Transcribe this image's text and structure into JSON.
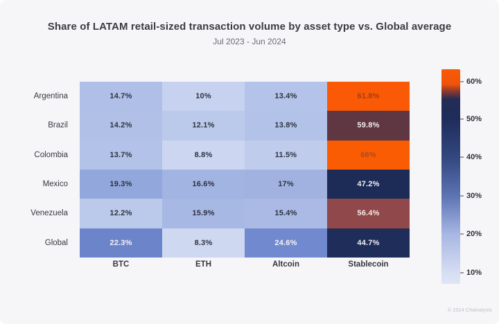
{
  "header": {
    "title": "Share of LATAM retail-sized transaction volume by asset type vs. Global average",
    "subtitle": "Jul 2023 - Jun 2024"
  },
  "footer": {
    "attribution": "© 2024 Chainalysis"
  },
  "colors": {
    "card_background": "#f6f6f8",
    "accent_orange": "#fa5a06",
    "accent_navy": "#1d2b57",
    "light_cell_text": "#2e3340",
    "dark_cell_text": "#f4f3f4"
  },
  "chart_data": {
    "type": "heatmap",
    "title": "Share of LATAM retail-sized transaction volume by asset type vs. Global average",
    "subtitle": "Jul 2023 - Jun 2024",
    "rows": [
      "Argentina",
      "Brazil",
      "Colombia",
      "Mexico",
      "Venezuela",
      "Global"
    ],
    "columns": [
      "BTC",
      "ETH",
      "Altcoin",
      "Stablecoin"
    ],
    "values": [
      [
        14.7,
        10,
        13.4,
        61.8
      ],
      [
        14.2,
        12.1,
        13.8,
        59.8
      ],
      [
        13.7,
        8.8,
        11.5,
        66
      ],
      [
        19.3,
        16.6,
        17,
        47.2
      ],
      [
        12.2,
        15.9,
        15.4,
        56.4
      ],
      [
        22.3,
        8.3,
        24.6,
        44.7
      ]
    ],
    "labels": [
      [
        "14.7%",
        "10%",
        "13.4%",
        "61.8%"
      ],
      [
        "14.2%",
        "12.1%",
        "13.8%",
        "59.8%"
      ],
      [
        "13.7%",
        "8.8%",
        "11.5%",
        "66%"
      ],
      [
        "19.3%",
        "16.6%",
        "17%",
        "47.2%"
      ],
      [
        "12.2%",
        "15.9%",
        "15.4%",
        "56.4%"
      ],
      [
        "22.3%",
        "8.3%",
        "24.6%",
        "44.7%"
      ]
    ],
    "cell_colors": [
      [
        "#afbfe7",
        "#c7d2f0",
        "#b4c3e9",
        "#fa5a06"
      ],
      [
        "#b1c0e7",
        "#bbc9eb",
        "#b3c2e8",
        "#5e3743"
      ],
      [
        "#b3c2e8",
        "#ccd6f1",
        "#bfccec",
        "#fa5c04"
      ],
      [
        "#92a7db",
        "#a2b4e2",
        "#a1b2e1",
        "#1d2b57"
      ],
      [
        "#bbc9ea",
        "#a7b8e4",
        "#aabae5",
        "#91484a"
      ],
      [
        "#6c84c9",
        "#ced8f1",
        "#7189ce",
        "#1f2d5a"
      ]
    ],
    "cell_text_colors": [
      [
        "#2e3340",
        "#2e3340",
        "#2e3340",
        "#a63e16"
      ],
      [
        "#2e3340",
        "#2e3340",
        "#2e3340",
        "#f3ecea"
      ],
      [
        "#2e3340",
        "#2e3340",
        "#2e3340",
        "#b0491a"
      ],
      [
        "#2e3340",
        "#2e3340",
        "#2e3340",
        "#f2f1f4"
      ],
      [
        "#2e3340",
        "#2e3340",
        "#2e3340",
        "#f3e9e7"
      ],
      [
        "#f4f4f6",
        "#2e3340",
        "#f4f4f6",
        "#f2f1f4"
      ]
    ],
    "legend_position": "right",
    "grid": false,
    "colorbar": {
      "ticks": [
        {
          "label": "60%",
          "pos": 5.8
        },
        {
          "label": "50%",
          "pos": 23.2
        },
        {
          "label": "40%",
          "pos": 41.0
        },
        {
          "label": "30%",
          "pos": 59.0
        },
        {
          "label": "20%",
          "pos": 76.8
        },
        {
          "label": "10%",
          "pos": 94.8
        }
      ],
      "gradient": [
        {
          "pos": 0,
          "color": "#fa5a05"
        },
        {
          "pos": 7,
          "color": "#f0540a"
        },
        {
          "pos": 10,
          "color": "#943a2b"
        },
        {
          "pos": 14,
          "color": "#232c55"
        },
        {
          "pos": 23,
          "color": "#1e2c5a"
        },
        {
          "pos": 41,
          "color": "#33477f"
        },
        {
          "pos": 59,
          "color": "#5c73b4"
        },
        {
          "pos": 77,
          "color": "#a8b7e3"
        },
        {
          "pos": 95,
          "color": "#d6def3"
        },
        {
          "pos": 100,
          "color": "#dee5f7"
        }
      ]
    }
  }
}
